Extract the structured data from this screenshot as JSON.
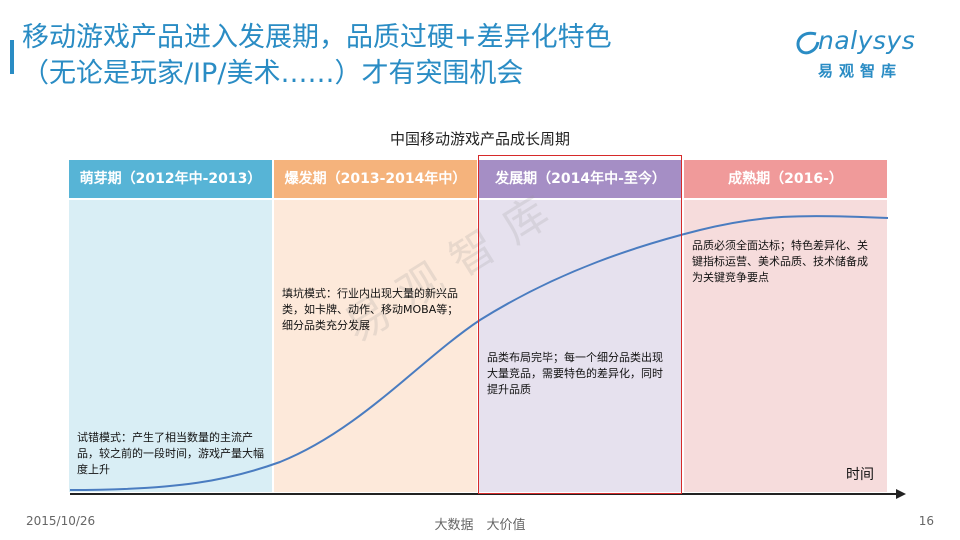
{
  "title": {
    "line1": "移动游戏产品进入发展期，品质过硬+差异化特色",
    "line2": "（无论是玩家/IP/美术……）才有突围机会"
  },
  "logo": {
    "wordmark": "nalysys",
    "sub": "易观智库",
    "watermark": "易观智库"
  },
  "diagram": {
    "title": "中国移动游戏产品成长周期",
    "phases": [
      {
        "label": "萌芽期（2012年中-2013）",
        "note": "试错模式：产生了相当数量的主流产品，较之前的一段时间，游戏产量大幅度上升"
      },
      {
        "label": "爆发期（2013-2014年中）",
        "note": "填坑模式：行业内出现大量的新兴品类，如卡牌、动作、移动MOBA等；细分品类充分发展"
      },
      {
        "label": "发展期（2014年中-至今）",
        "note": "品类布局完毕；每一个细分品类出现大量竞品，需要特色的差异化，同时提升品质"
      },
      {
        "label": "成熟期（2016-）",
        "note": "品质必须全面达标；特色差异化、关键指标运营、美术品质、技术储备成为关键竞争要点"
      }
    ],
    "axis_label": "时间",
    "colors": {
      "phase1": "#57b4d6",
      "phase2": "#f5b37c",
      "phase3": "#a58ec5",
      "phase4": "#f09a9a",
      "curve": "#4a7cc0",
      "highlight": "#d62a2a"
    }
  },
  "footer": {
    "date": "2015/10/26",
    "center": "大数据　大价值",
    "page": "16"
  }
}
